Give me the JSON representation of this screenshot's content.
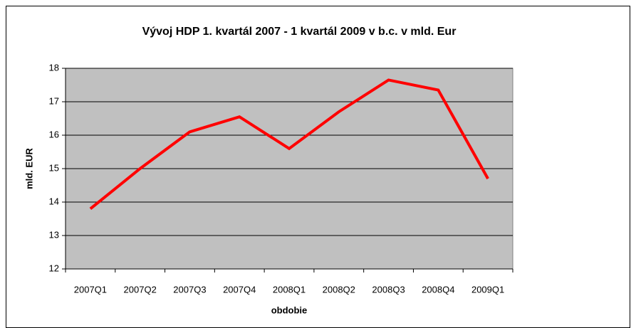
{
  "chart_data": {
    "type": "line",
    "title": "Vývoj HDP 1. kvartál 2007 - 1 kvartál 2009 v b.c. v mld. Eur",
    "x_label": "obdobie",
    "y_label": "mld. EUR",
    "categories": [
      "2007Q1",
      "2007Q2",
      "2007Q3",
      "2007Q4",
      "2008Q1",
      "2008Q2",
      "2008Q3",
      "2008Q4",
      "2009Q1"
    ],
    "values": [
      13.8,
      15.0,
      16.1,
      16.55,
      15.6,
      16.7,
      17.65,
      17.35,
      14.7
    ],
    "color": "#ff0000",
    "ylim": [
      12,
      18
    ],
    "yticks": [
      12,
      13,
      14,
      15,
      16,
      17,
      18
    ],
    "grid": true
  }
}
